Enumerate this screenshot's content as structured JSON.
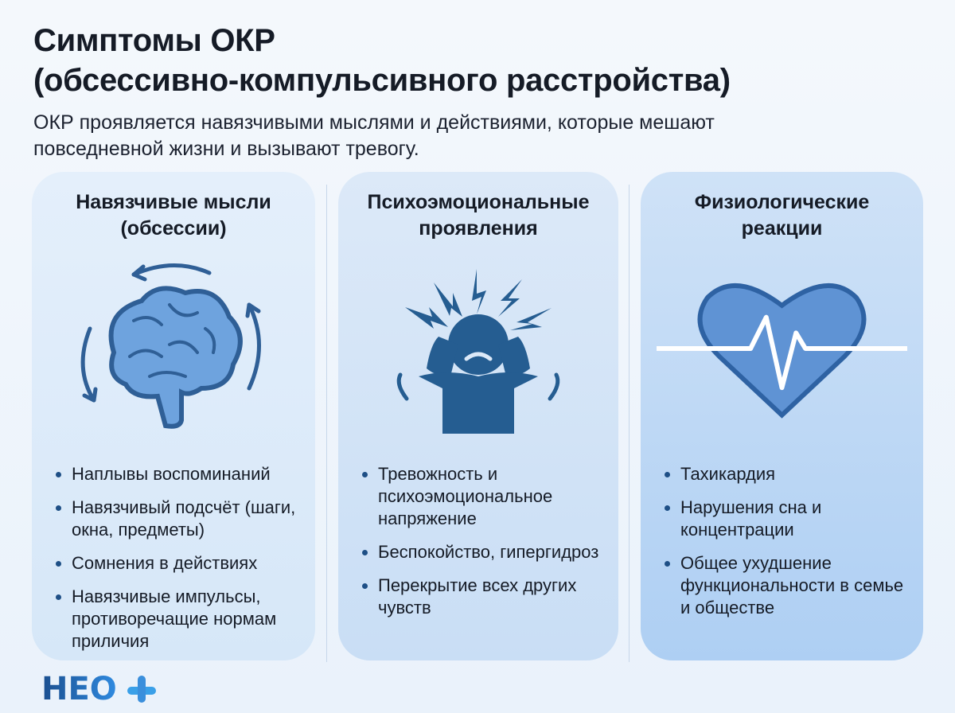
{
  "header": {
    "title_line1": "Симптомы ОКР",
    "title_line2": "(обсессивно-компульсивного расстройства)",
    "subtitle_line1": "ОКР проявляется навязчивыми мыслями и действиями, которые мешают",
    "subtitle_line2": "повседневной жизни и вызывают тревогу."
  },
  "cards": [
    {
      "title_line1": "Навязчивые мысли",
      "title_line2": "(обсессии)",
      "icon": "brain-with-cycle-arrows-icon",
      "items": [
        "Наплывы воспоминаний",
        "Навязчивый подсчёт (шаги, окна, предметы)",
        "Сомнения в действиях",
        "Навязчивые импульсы, противоречащие нормам приличия"
      ]
    },
    {
      "title_line1": "Психоэмоциональные",
      "title_line2": "проявления",
      "icon": "stressed-person-icon",
      "items": [
        "Тревожность и психоэмоциональное напряжение",
        "Беспокойство, гипергидроз",
        "Перекрытие всех других чувств"
      ]
    },
    {
      "title_line1": "Физиологические",
      "title_line2": "реакции",
      "icon": "heart-pulse-icon",
      "items": [
        "Тахикардия",
        "Нарушения сна и концентрации",
        "Общее ухудшение функциональности в семье и обществе"
      ]
    }
  ],
  "logo": {
    "text": "НЕО+"
  },
  "colors": {
    "icon": "#2f6aa6",
    "accent": "#1e4f86"
  }
}
